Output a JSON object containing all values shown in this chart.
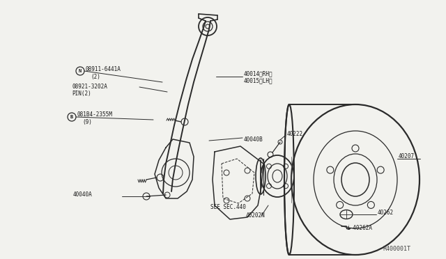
{
  "bg_color": "#f2f2ee",
  "line_color": "#2a2a2a",
  "text_color": "#1a1a1a",
  "ref_code": "R400001T",
  "labels": {
    "part1_a": "N",
    "part1_b": "08911-6441A",
    "part1_c": "(2)",
    "part2_a": "08921-3202A",
    "part2_b": "PIN(2)",
    "part3_a": "B",
    "part3_b": "081B4-2355M",
    "part3_c": "(9)",
    "part4_a": "40014〈RH〉",
    "part4_b": "40015〈LH〉",
    "part5": "40040B",
    "part6": "40040A",
    "part7": "40222",
    "part8": "SEE SEC.440",
    "part9": "40202N",
    "part10": "40207",
    "part11": "40262",
    "part12": "40262A"
  },
  "figsize": [
    6.4,
    3.72
  ],
  "dpi": 100
}
